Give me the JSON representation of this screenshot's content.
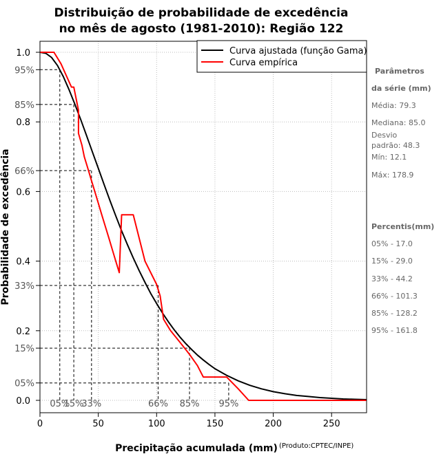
{
  "chart_data": {
    "type": "line",
    "title_line1": "Distribuição de probabilidade de excedência",
    "title_line2": "no mês de agosto (1981-2010): Região 122",
    "xlabel": "Precipitação acumulada (mm)",
    "ylabel": "Probabilidade de excedência",
    "source": "(Produto:CPTEC/INPE)",
    "xlim": [
      0,
      280
    ],
    "ylim": [
      0,
      1
    ],
    "x_ticks": [
      0,
      50,
      100,
      150,
      200,
      250
    ],
    "x_tick_labels": [
      "0",
      "50",
      "100",
      "150",
      "200",
      "250"
    ],
    "y_ticks_main": [
      0.0,
      0.2,
      0.4,
      0.6,
      0.8,
      1.0
    ],
    "y_tick_labels_main": [
      "0.0",
      "0.2",
      "0.4",
      "0.6",
      "0.8",
      "1.0"
    ],
    "y_ticks_pct": [
      0.05,
      0.15,
      0.33,
      0.66,
      0.85,
      0.95
    ],
    "y_tick_labels_pct": [
      "05%",
      "15%",
      "33%",
      "66%",
      "85%",
      "95%"
    ],
    "legend": {
      "position": "top-right",
      "entries": [
        {
          "label": "Curva ajustada (função Gama)",
          "color": "#000000"
        },
        {
          "label": "Curva empírica",
          "color": "#ff0000"
        }
      ]
    },
    "series": [
      {
        "name": "Curva ajustada (função Gama)",
        "color": "#000000",
        "x": [
          0,
          5,
          10,
          15,
          20,
          25,
          30,
          35,
          40,
          45,
          50,
          55,
          60,
          65,
          70,
          75,
          80,
          85,
          90,
          95,
          100,
          105,
          110,
          115,
          120,
          125,
          130,
          135,
          140,
          145,
          150,
          160,
          170,
          180,
          190,
          200,
          210,
          220,
          230,
          240,
          250,
          260,
          270,
          280
        ],
        "y": [
          1.0,
          0.997,
          0.985,
          0.962,
          0.93,
          0.892,
          0.85,
          0.806,
          0.76,
          0.713,
          0.667,
          0.62,
          0.574,
          0.53,
          0.487,
          0.447,
          0.409,
          0.373,
          0.339,
          0.307,
          0.278,
          0.251,
          0.226,
          0.203,
          0.182,
          0.163,
          0.146,
          0.13,
          0.116,
          0.103,
          0.091,
          0.072,
          0.056,
          0.043,
          0.033,
          0.025,
          0.019,
          0.014,
          0.011,
          0.008,
          0.006,
          0.004,
          0.003,
          0.002
        ]
      },
      {
        "name": "Curva empírica",
        "color": "#ff0000",
        "step": true,
        "x": [
          0,
          12,
          18,
          27,
          29,
          33,
          33,
          36,
          38,
          41,
          44,
          47,
          50,
          53,
          56,
          59,
          62,
          65,
          68,
          70,
          80,
          90,
          100,
          103,
          106,
          112,
          120,
          128,
          135,
          140,
          145,
          150,
          160,
          170,
          178.9,
          280
        ],
        "y": [
          1.0,
          1.0,
          0.967,
          0.9,
          0.9,
          0.833,
          0.767,
          0.733,
          0.7,
          0.667,
          0.633,
          0.6,
          0.567,
          0.533,
          0.5,
          0.467,
          0.433,
          0.4,
          0.367,
          0.533,
          0.533,
          0.4,
          0.333,
          0.3,
          0.233,
          0.2,
          0.167,
          0.133,
          0.1,
          0.067,
          0.067,
          0.067,
          0.067,
          0.033,
          0.0,
          0.0
        ]
      }
    ],
    "percentile_markers": [
      {
        "label": "05%",
        "x": 17.0,
        "y": 0.95
      },
      {
        "label": "15%",
        "x": 29.0,
        "y": 0.85
      },
      {
        "label": "33%",
        "x": 44.2,
        "y": 0.66
      },
      {
        "label": "66%",
        "x": 101.3,
        "y": 0.33
      },
      {
        "label": "85%",
        "x": 128.2,
        "y": 0.15
      },
      {
        "label": "95%",
        "x": 161.8,
        "y": 0.05
      }
    ]
  },
  "side_panel": {
    "params_heading_1": "Parâmetros",
    "params_heading_2": "da série (mm)",
    "media": "Média: 79.3",
    "mediana": "Mediana: 85.0",
    "desvio_1": "Desvio",
    "desvio_2": "padrão: 48.3",
    "min": "Mín: 12.1",
    "max": "Máx: 178.9",
    "percentis_heading": "Percentis(mm)",
    "percentis": [
      "05% - 17.0",
      "15% - 29.0",
      "33% - 44.2",
      "66% - 101.3",
      "85% - 128.2",
      "95% - 161.8"
    ]
  }
}
